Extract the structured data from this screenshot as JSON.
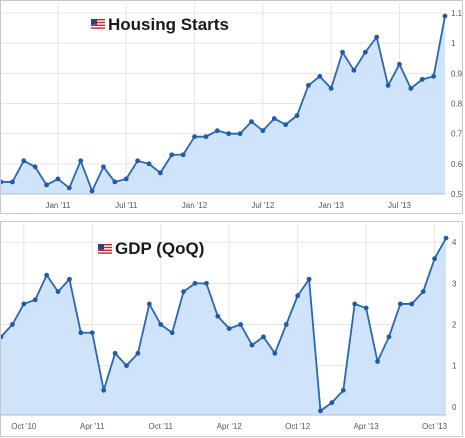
{
  "colors": {
    "line": "#2a67b1",
    "fill": "#cfe3fb",
    "point": "#1f5ba6",
    "grid": "#e5e5e5"
  },
  "chart_data": [
    {
      "type": "area",
      "title": "Housing Starts",
      "title_icon": "us-flag-icon",
      "ylim": [
        0.5,
        1.1
      ],
      "yticks": [
        "0.5",
        "0.6",
        "0.7",
        "0.8",
        "0.9",
        "1",
        "1.1"
      ],
      "xtick_labels": [
        "Jan '11",
        "Jul '11",
        "Jan '12",
        "Jul '12",
        "Jan '13",
        "Jul '13"
      ],
      "xtick_index": [
        5,
        11,
        17,
        23,
        29,
        35
      ],
      "values": [
        0.54,
        0.54,
        0.61,
        0.59,
        0.53,
        0.55,
        0.52,
        0.61,
        0.51,
        0.59,
        0.54,
        0.55,
        0.61,
        0.6,
        0.57,
        0.63,
        0.63,
        0.69,
        0.69,
        0.71,
        0.7,
        0.7,
        0.74,
        0.71,
        0.75,
        0.73,
        0.76,
        0.86,
        0.89,
        0.85,
        0.97,
        0.91,
        0.97,
        1.02,
        0.86,
        0.93,
        0.85,
        0.88,
        0.89,
        1.09
      ]
    },
    {
      "type": "area",
      "title": "GDP (QoQ)",
      "title_icon": "us-flag-icon",
      "ylim": [
        -0.2,
        4.2
      ],
      "yticks": [
        "0",
        "1",
        "2",
        "3",
        "4"
      ],
      "xtick_labels": [
        "Oct '10",
        "Apr '11",
        "Oct '11",
        "Apr '12",
        "Oct '12",
        "Apr '13",
        "Oct '13"
      ],
      "xtick_index": [
        2,
        8,
        14,
        20,
        26,
        32,
        38
      ],
      "values": [
        1.7,
        2.0,
        2.5,
        2.6,
        3.2,
        2.8,
        3.1,
        1.8,
        1.8,
        0.4,
        1.3,
        1.0,
        1.3,
        2.5,
        2.0,
        1.8,
        2.8,
        3.0,
        3.0,
        2.2,
        1.9,
        2.0,
        1.5,
        1.7,
        1.3,
        2.0,
        2.7,
        3.1,
        -0.1,
        0.1,
        0.4,
        2.5,
        2.4,
        1.1,
        1.7,
        2.5,
        2.5,
        2.8,
        3.6,
        4.1
      ]
    }
  ]
}
